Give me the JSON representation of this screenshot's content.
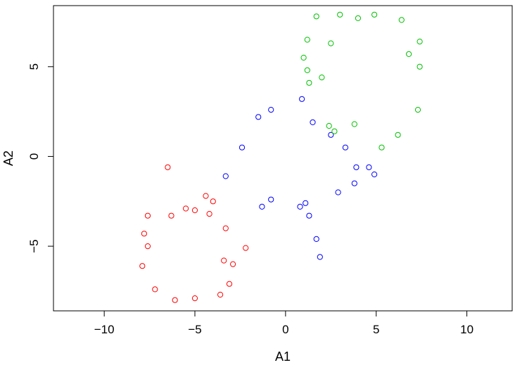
{
  "chart_data": {
    "type": "scatter",
    "title": "",
    "xlabel": "A1",
    "ylabel": "A2",
    "xlim": [
      -12.8,
      12.5
    ],
    "ylim": [
      -8.6,
      8.4
    ],
    "xticks": [
      -10,
      -5,
      0,
      5,
      10
    ],
    "yticks": [
      -5,
      0,
      5
    ],
    "xtick_labels": [
      "−10",
      "−5",
      "0",
      "5",
      "10"
    ],
    "ytick_labels": [
      "−5",
      "0",
      "5"
    ],
    "grid": false,
    "legend": "none",
    "marker": "open-circle",
    "series": [
      {
        "color": "#ff0000",
        "points": [
          [
            -6.5,
            -0.6
          ],
          [
            -7.6,
            -3.3
          ],
          [
            -4.4,
            -2.2
          ],
          [
            -2.2,
            -5.1
          ],
          [
            -3.3,
            -4.0
          ],
          [
            -3.1,
            -7.1
          ],
          [
            -6.1,
            -8.0
          ],
          [
            -7.8,
            -4.3
          ],
          [
            -7.2,
            -7.4
          ],
          [
            -4.0,
            -2.5
          ],
          [
            -5.0,
            -3.0
          ],
          [
            -6.3,
            -3.3
          ],
          [
            -5.5,
            -2.9
          ],
          [
            -4.2,
            -3.2
          ],
          [
            -3.4,
            -5.8
          ],
          [
            -2.9,
            -6.0
          ],
          [
            -3.6,
            -7.7
          ],
          [
            -5.0,
            -7.9
          ],
          [
            -7.6,
            -5.0
          ],
          [
            -7.9,
            -6.1
          ]
        ]
      },
      {
        "color": "#0000ff",
        "points": [
          [
            0.9,
            3.2
          ],
          [
            -0.8,
            2.6
          ],
          [
            3.3,
            0.5
          ],
          [
            3.9,
            -0.6
          ],
          [
            4.9,
            -1.0
          ],
          [
            4.6,
            -0.6
          ],
          [
            1.1,
            -2.6
          ],
          [
            1.3,
            -3.3
          ],
          [
            1.7,
            -4.6
          ],
          [
            1.9,
            -5.6
          ],
          [
            -1.3,
            -2.8
          ],
          [
            -0.8,
            -2.4
          ],
          [
            3.8,
            -1.5
          ],
          [
            2.9,
            -2.0
          ],
          [
            -3.3,
            -1.1
          ],
          [
            -2.4,
            0.5
          ],
          [
            2.5,
            1.2
          ],
          [
            -1.5,
            2.2
          ],
          [
            0.8,
            -2.8
          ],
          [
            1.5,
            1.9
          ]
        ]
      },
      {
        "color": "#00c000",
        "points": [
          [
            1.7,
            7.8
          ],
          [
            3.0,
            7.9
          ],
          [
            5.3,
            0.5
          ],
          [
            2.7,
            1.4
          ],
          [
            1.2,
            6.5
          ],
          [
            1.0,
            5.5
          ],
          [
            1.2,
            4.8
          ],
          [
            1.3,
            4.1
          ],
          [
            6.2,
            1.2
          ],
          [
            7.3,
            2.6
          ],
          [
            7.4,
            6.4
          ],
          [
            6.4,
            7.6
          ],
          [
            4.9,
            7.9
          ],
          [
            4.0,
            7.7
          ],
          [
            7.4,
            5.0
          ],
          [
            2.4,
            1.7
          ],
          [
            2.0,
            4.4
          ],
          [
            3.8,
            1.8
          ],
          [
            6.8,
            5.7
          ],
          [
            2.5,
            6.3
          ]
        ]
      }
    ]
  }
}
